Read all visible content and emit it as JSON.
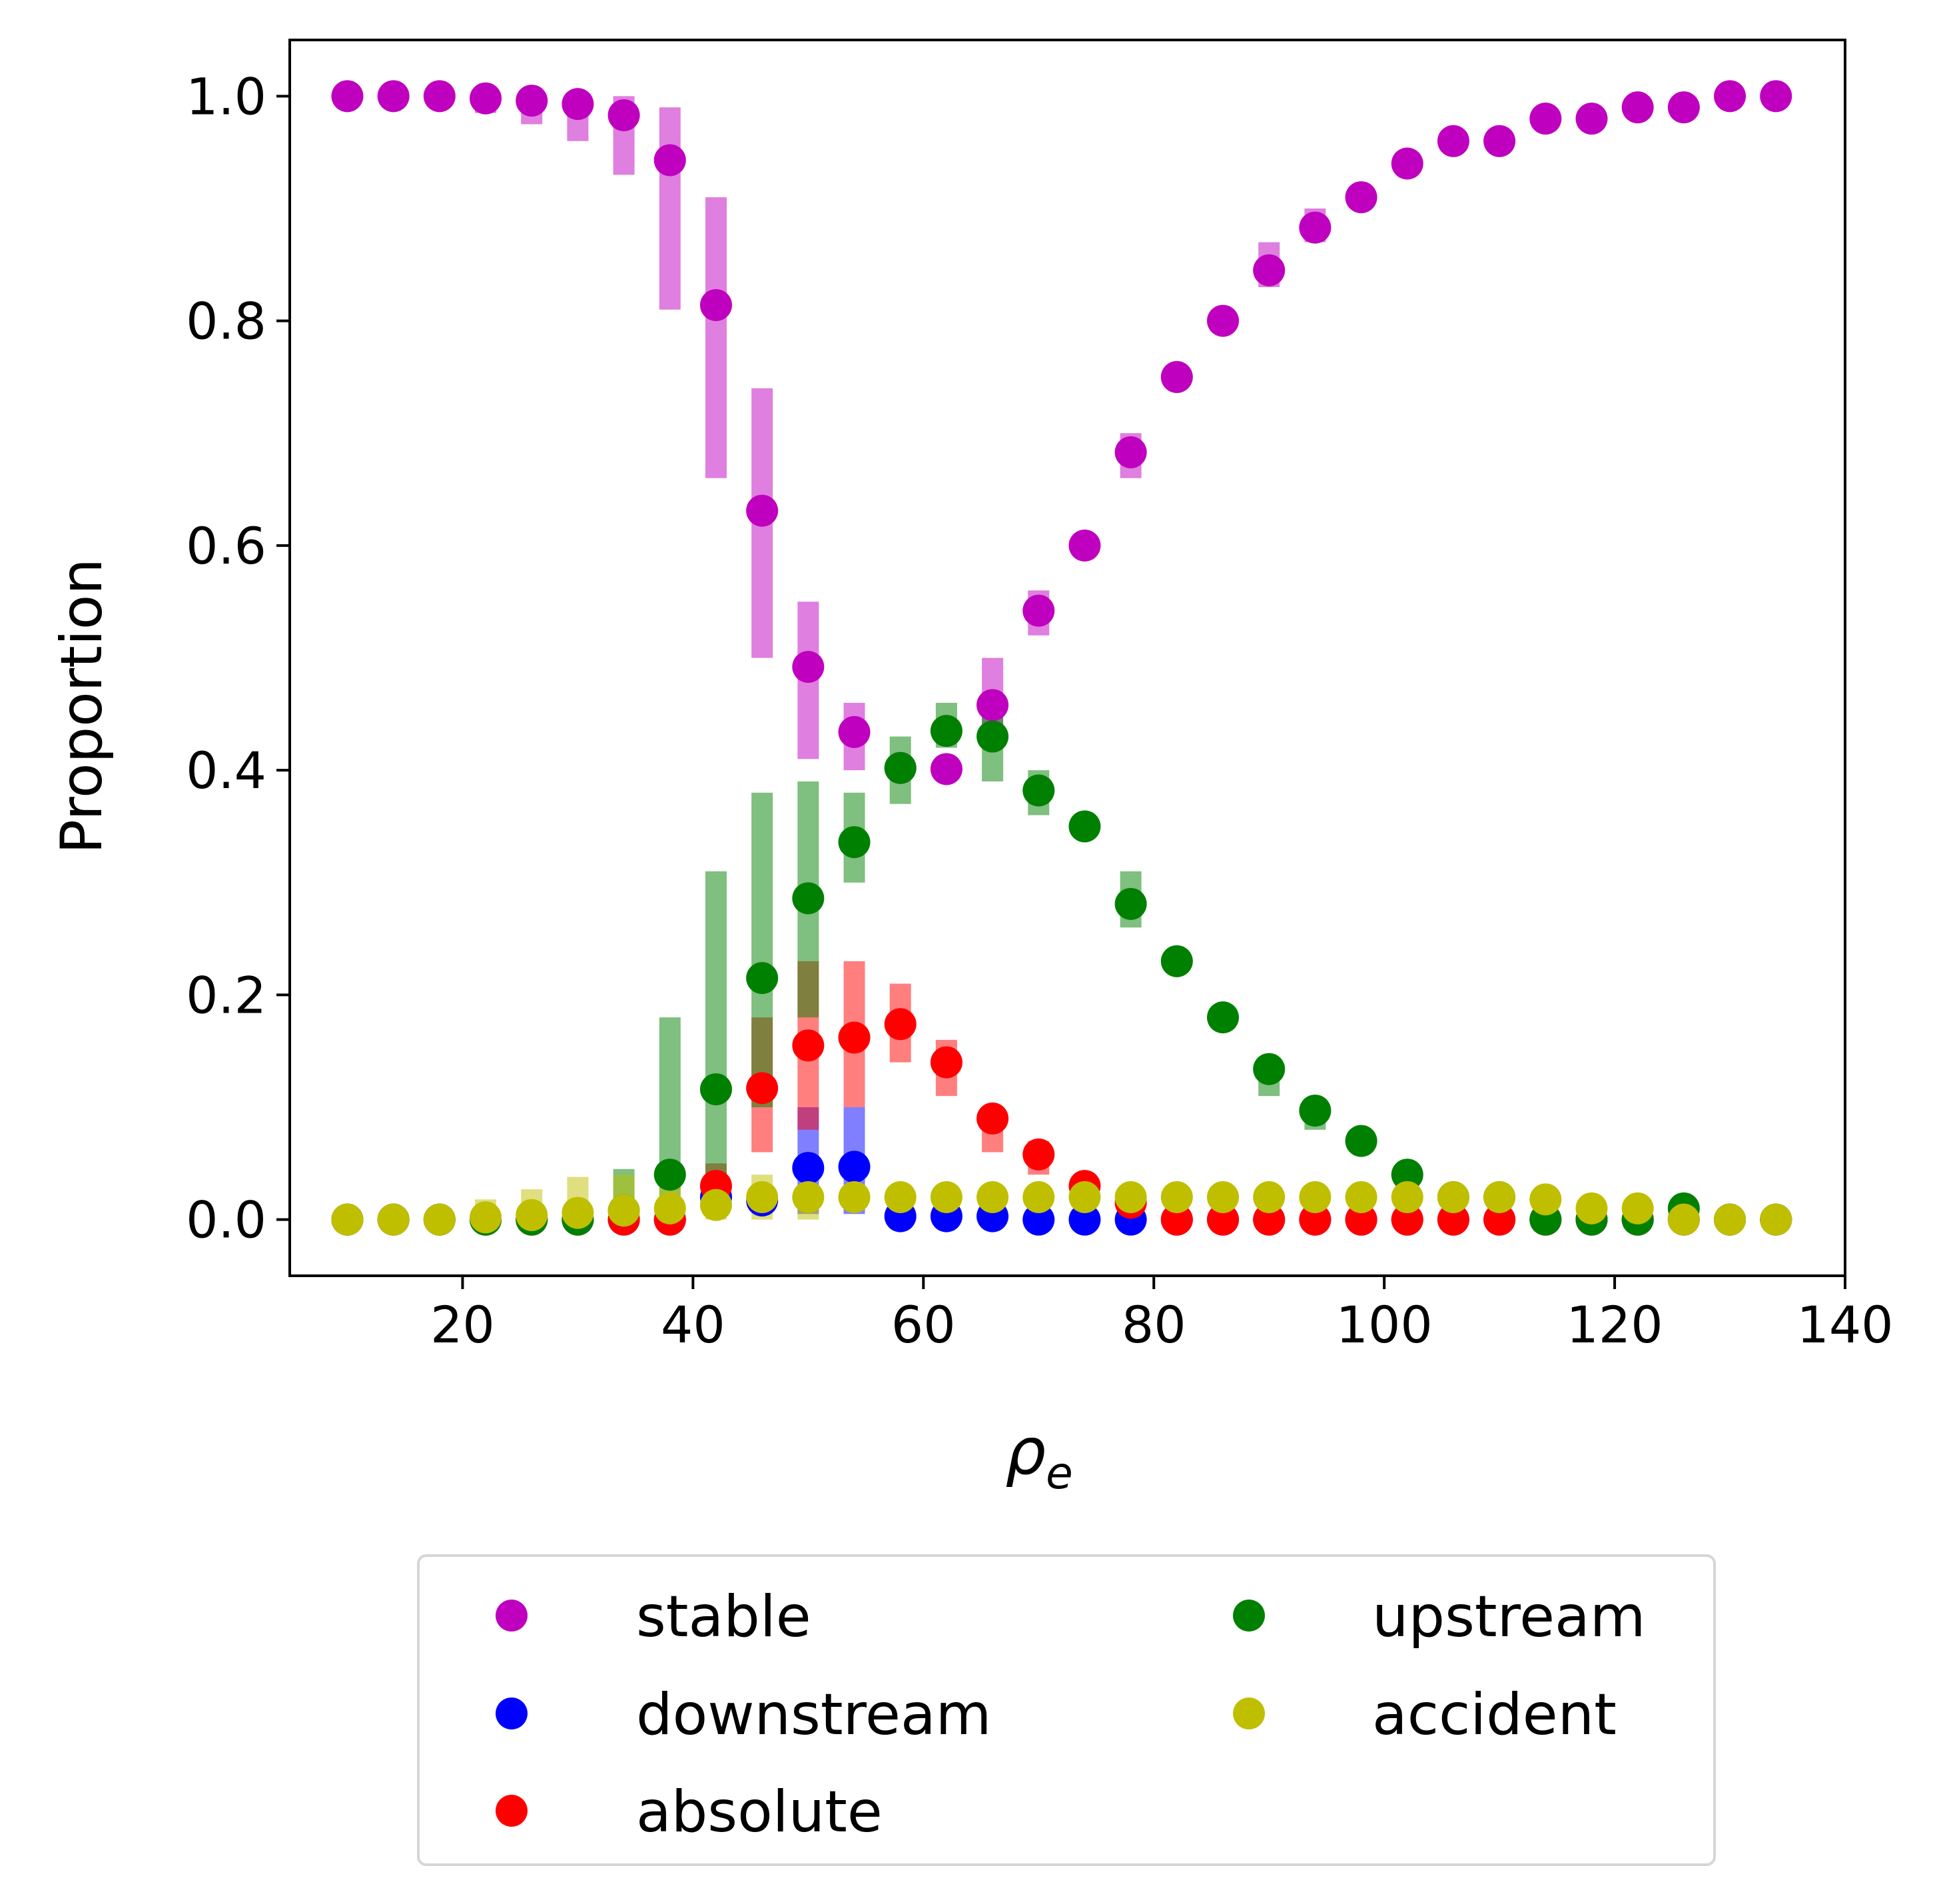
{
  "chart_data": {
    "type": "scatter",
    "title": "",
    "xlabel": "ρ",
    "xlabel_subscript": "e",
    "ylabel": "Proportion",
    "xlim": [
      5,
      140
    ],
    "ylim": [
      -0.05,
      1.05
    ],
    "xticks": [
      20,
      40,
      60,
      80,
      100,
      120,
      140
    ],
    "xtick_labels": [
      "20",
      "40",
      "60",
      "80",
      "100",
      "120",
      "140"
    ],
    "yticks": [
      0.0,
      0.2,
      0.4,
      0.6,
      0.8,
      1.0
    ],
    "ytick_labels": [
      "0.0",
      "0.2",
      "0.4",
      "0.6",
      "0.8",
      "1.0"
    ],
    "grid": false,
    "legend_placement": "below plot, two columns",
    "x": [
      10,
      14,
      18,
      22,
      26,
      30,
      34,
      38,
      42,
      46,
      50,
      54,
      58,
      62,
      66,
      70,
      74,
      78,
      82,
      86,
      90,
      94,
      98,
      102,
      106,
      110,
      114,
      118,
      122,
      126,
      130,
      134
    ],
    "series": [
      {
        "name": "stable",
        "color": "#bf00bf",
        "values": [
          1.0,
          1.0,
          1.0,
          0.998,
          0.996,
          0.993,
          0.983,
          0.943,
          0.814,
          0.631,
          0.492,
          0.434,
          0.402,
          0.401,
          0.458,
          0.542,
          0.6,
          0.683,
          0.75,
          0.8,
          0.845,
          0.883,
          0.91,
          0.94,
          0.96,
          0.96,
          0.98,
          0.98,
          0.99,
          0.99,
          1.0,
          1.0
        ],
        "err_low": [
          1.0,
          1.0,
          1.0,
          0.985,
          0.975,
          0.96,
          0.93,
          0.81,
          0.66,
          0.5,
          0.41,
          0.4,
          0.402,
          0.401,
          0.43,
          0.52,
          0.6,
          0.66,
          0.75,
          0.8,
          0.83,
          0.87,
          0.91,
          0.94,
          0.96,
          0.96,
          0.98,
          0.98,
          0.99,
          0.99,
          1.0,
          1.0
        ],
        "err_high": [
          1.0,
          1.0,
          1.0,
          1.0,
          1.0,
          1.0,
          1.0,
          0.99,
          0.91,
          0.74,
          0.55,
          0.46,
          0.402,
          0.401,
          0.5,
          0.56,
          0.6,
          0.7,
          0.75,
          0.8,
          0.87,
          0.9,
          0.91,
          0.94,
          0.96,
          0.96,
          0.98,
          0.98,
          0.99,
          0.99,
          1.0,
          1.0
        ]
      },
      {
        "name": "downstream",
        "color": "#0000ff",
        "values": [
          0.0,
          0.0,
          0.0,
          0.0,
          0.0,
          0.0,
          0.0,
          0.0,
          0.02,
          0.017,
          0.046,
          0.047,
          0.003,
          0.003,
          0.003,
          0.0,
          0.0,
          0.0,
          0.0,
          0.0,
          0.0,
          0.0,
          0.0,
          0.0,
          0.0,
          0.0,
          0.0,
          0.0,
          0.0,
          0.0,
          0.0,
          0.0
        ],
        "err_low": [
          0.0,
          0.0,
          0.0,
          0.0,
          0.0,
          0.0,
          0.0,
          0.0,
          0.02,
          0.01,
          0.005,
          0.005,
          0.003,
          0.003,
          0.003,
          0.0,
          0.0,
          0.0,
          0.0,
          0.0,
          0.0,
          0.0,
          0.0,
          0.0,
          0.0,
          0.0,
          0.0,
          0.0,
          0.0,
          0.0,
          0.0,
          0.0
        ],
        "err_high": [
          0.0,
          0.0,
          0.0,
          0.0,
          0.0,
          0.0,
          0.0,
          0.0,
          0.02,
          0.03,
          0.1,
          0.1,
          0.003,
          0.003,
          0.003,
          0.0,
          0.0,
          0.0,
          0.0,
          0.0,
          0.0,
          0.0,
          0.0,
          0.0,
          0.0,
          0.0,
          0.0,
          0.0,
          0.0,
          0.0,
          0.0,
          0.0
        ]
      },
      {
        "name": "absolute",
        "color": "#ff0000",
        "values": [
          0.0,
          0.0,
          0.0,
          0.0,
          0.0,
          0.0,
          0.0,
          0.0,
          0.03,
          0.117,
          0.155,
          0.162,
          0.174,
          0.14,
          0.09,
          0.058,
          0.03,
          0.015,
          0.0,
          0.0,
          0.0,
          0.0,
          0.0,
          0.0,
          0.0,
          0.0,
          0.0,
          0.0,
          0.0,
          0.0,
          0.0,
          0.0
        ],
        "err_low": [
          0.0,
          0.0,
          0.0,
          0.0,
          0.0,
          0.0,
          0.0,
          0.0,
          0.01,
          0.06,
          0.08,
          0.1,
          0.14,
          0.11,
          0.06,
          0.04,
          0.02,
          0.0,
          0.0,
          0.0,
          0.0,
          0.0,
          0.0,
          0.0,
          0.0,
          0.0,
          0.0,
          0.0,
          0.0,
          0.0,
          0.0,
          0.0
        ],
        "err_high": [
          0.0,
          0.0,
          0.0,
          0.0,
          0.0,
          0.0,
          0.0,
          0.0,
          0.05,
          0.18,
          0.23,
          0.23,
          0.21,
          0.16,
          0.1,
          0.07,
          0.04,
          0.03,
          0.0,
          0.0,
          0.0,
          0.0,
          0.0,
          0.0,
          0.0,
          0.0,
          0.0,
          0.0,
          0.0,
          0.0,
          0.0,
          0.0
        ]
      },
      {
        "name": "upstream",
        "color": "#008000",
        "values": [
          0.0,
          0.0,
          0.0,
          0.0,
          0.0,
          0.0,
          0.008,
          0.04,
          0.116,
          0.215,
          0.286,
          0.336,
          0.402,
          0.435,
          0.43,
          0.382,
          0.35,
          0.281,
          0.23,
          0.18,
          0.134,
          0.097,
          0.07,
          0.04,
          0.02,
          0.02,
          0.0,
          0.0,
          0.0,
          0.01,
          0.0,
          0.0
        ],
        "err_low": [
          0.0,
          0.0,
          0.0,
          0.0,
          0.0,
          0.0,
          0.0,
          0.01,
          0.02,
          0.1,
          0.18,
          0.3,
          0.37,
          0.42,
          0.39,
          0.36,
          0.35,
          0.26,
          0.23,
          0.18,
          0.11,
          0.08,
          0.07,
          0.03,
          0.02,
          0.02,
          0.0,
          0.0,
          0.0,
          0.01,
          0.0,
          0.0
        ],
        "err_high": [
          0.0,
          0.0,
          0.0,
          0.0,
          0.0,
          0.0,
          0.045,
          0.18,
          0.31,
          0.38,
          0.39,
          0.38,
          0.43,
          0.46,
          0.46,
          0.4,
          0.35,
          0.31,
          0.23,
          0.18,
          0.14,
          0.1,
          0.07,
          0.05,
          0.02,
          0.02,
          0.0,
          0.01,
          0.01,
          0.01,
          0.0,
          0.0
        ]
      },
      {
        "name": "accident",
        "color": "#bfbf00",
        "values": [
          0.0,
          0.0,
          0.0,
          0.002,
          0.004,
          0.006,
          0.008,
          0.01,
          0.013,
          0.02,
          0.02,
          0.02,
          0.02,
          0.02,
          0.02,
          0.02,
          0.02,
          0.02,
          0.02,
          0.02,
          0.02,
          0.02,
          0.02,
          0.02,
          0.02,
          0.02,
          0.018,
          0.01,
          0.01,
          0.0,
          0.0,
          0.0
        ],
        "err_low": [
          0.0,
          0.0,
          0.0,
          0.0,
          0.0,
          0.0,
          0.0,
          0.0,
          0.0,
          0.0,
          0.0,
          0.01,
          0.02,
          0.02,
          0.02,
          0.02,
          0.02,
          0.02,
          0.02,
          0.02,
          0.02,
          0.02,
          0.02,
          0.02,
          0.02,
          0.02,
          0.018,
          0.01,
          0.01,
          0.0,
          0.0,
          0.0
        ],
        "err_high": [
          0.0,
          0.0,
          0.0,
          0.018,
          0.027,
          0.038,
          0.04,
          0.04,
          0.04,
          0.04,
          0.03,
          0.03,
          0.02,
          0.02,
          0.02,
          0.02,
          0.02,
          0.02,
          0.02,
          0.02,
          0.02,
          0.02,
          0.02,
          0.02,
          0.02,
          0.02,
          0.018,
          0.01,
          0.01,
          0.0,
          0.0,
          0.0
        ]
      }
    ],
    "legend": {
      "columns": [
        [
          "stable",
          "downstream",
          "absolute"
        ],
        [
          "upstream",
          "accident"
        ]
      ]
    }
  }
}
